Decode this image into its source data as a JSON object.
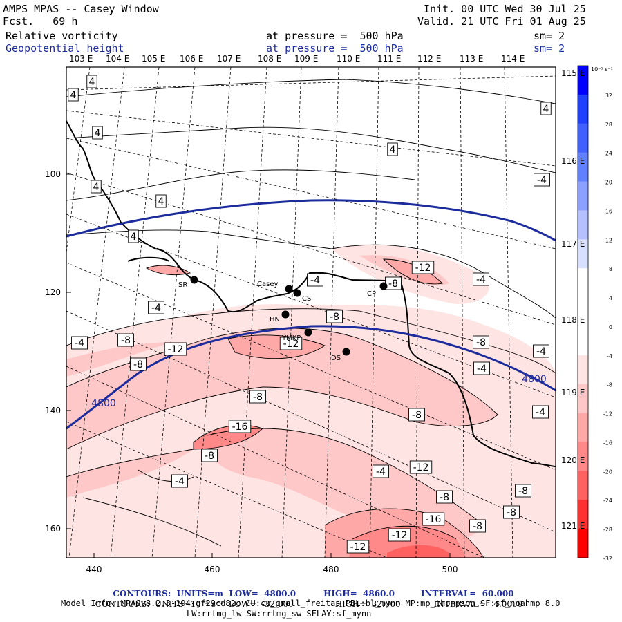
{
  "header": {
    "title": "AMPS MPAS -- Casey Window",
    "forecast": "Fcst.   69 h",
    "init": "Init. 00 UTC Wed 30 Jul 25",
    "valid": "Valid. 21 UTC Fri 01 Aug 25",
    "field1_name": "Relative vorticity",
    "field1_level": "at pressure =  500 hPa",
    "field1_sm": "sm= 2",
    "field2_name": "Geopotential height",
    "field2_level": "at pressure =  500 hPa",
    "field2_sm": "sm= 2"
  },
  "axes": {
    "top_lon_labels": [
      "103 E",
      "104 E",
      "105 E",
      "106 E",
      "107 E",
      "108 E",
      "109 E",
      "110 E",
      "111 E",
      "112 E",
      "113 E",
      "114 E"
    ],
    "right_lon_labels": [
      "115 E",
      "116 E",
      "117 E",
      "118 E",
      "119 E",
      "120 E",
      "121 E"
    ],
    "bottom_ticks": [
      "440",
      "460",
      "480",
      "500"
    ],
    "left_ticks": [
      "100",
      "120",
      "140",
      "160"
    ]
  },
  "colorbar": {
    "unit": "10⁻⁵ s⁻¹",
    "labels": [
      "32",
      "28",
      "24",
      "20",
      "16",
      "12",
      "8",
      "4",
      "0",
      "-4",
      "-8",
      "-12",
      "-16",
      "-20",
      "-24",
      "-28",
      "-32"
    ],
    "colors": [
      "#0000ff",
      "#2040ff",
      "#4060ff",
      "#6080ff",
      "#8ca0ff",
      "#b4c0ff",
      "#d8e0ff",
      "#ffffff",
      "#ffffff",
      "#ffffff",
      "#ffe4e4",
      "#ffc8c8",
      "#ffa8a8",
      "#ff8888",
      "#ff6060",
      "#ff3030",
      "#ff0000"
    ]
  },
  "stations": [
    {
      "name": "SR"
    },
    {
      "name": "Casey"
    },
    {
      "name": "CS"
    },
    {
      "name": "CP"
    },
    {
      "name": "HN"
    },
    {
      "name": "YMKP"
    },
    {
      "name": "DS"
    }
  ],
  "vorticity_labels": [
    "4",
    "4",
    "4",
    "4",
    "4",
    "4",
    "4",
    "4",
    "-4",
    "-4",
    "-4",
    "-4",
    "-4",
    "-4",
    "-4",
    "-4",
    "-4",
    "-4",
    "-8",
    "-8",
    "-8",
    "-8",
    "-8",
    "-8",
    "-8",
    "-8",
    "-8",
    "-8",
    "-8",
    "-8",
    "-12",
    "-12",
    "-12",
    "-12",
    "-12",
    "-12",
    "-16",
    "-16"
  ],
  "height_labels": [
    "4800",
    "4800"
  ],
  "footer": {
    "line1_a": "CONTOURS:  UNITS=m  LOW=  4800.0",
    "line1_b": "HIGH=  4860.0",
    "line1_c": "INTERVAL=  60.000",
    "line2_a": "CONTOURS:  UNITS=10⁻⁵ s⁻¹  LOW=  -32.000",
    "line2_b": "HIGH=  32.000",
    "line2_c": "INTERVAL=   4.0000",
    "model_info": "Model Info: MPASv8.2.3-194-gf29cd82c CU:cu_grell_freitas PBL:bl_mynn MP:mp_thompson SF:sf_noahmp 8.0",
    "model_info2": "LW:rrtmg_lw SW:rrtmg_sw SFLAY:sf_mynn"
  }
}
